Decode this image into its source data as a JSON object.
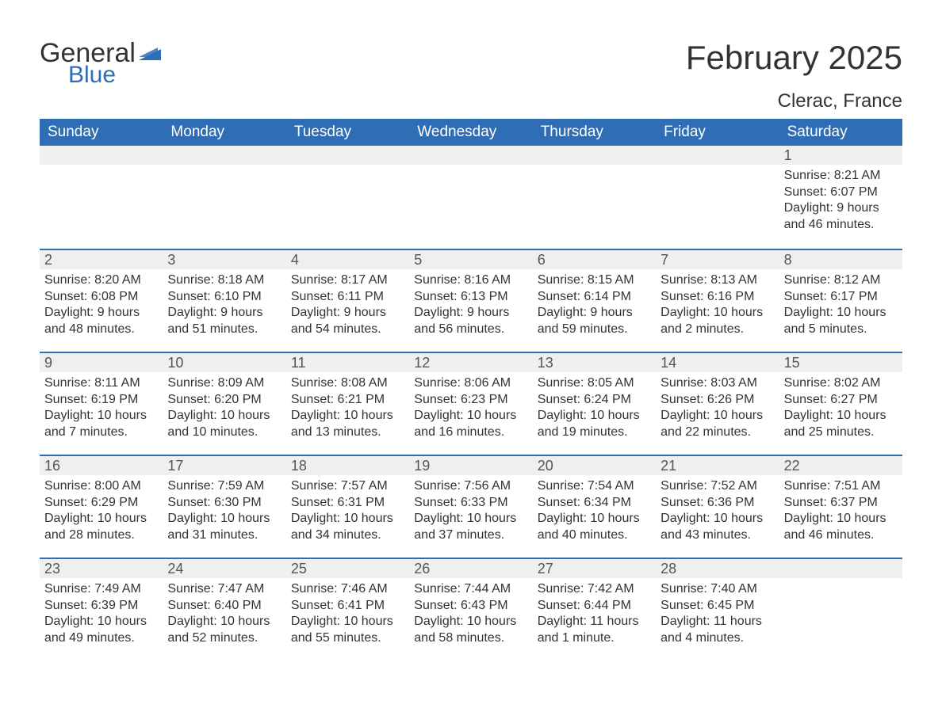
{
  "logo": {
    "word1": "General",
    "word2": "Blue",
    "brand_color": "#2f6eb5"
  },
  "title": "February 2025",
  "location": "Clerac, France",
  "header_bg": "#2f6eb5",
  "header_fg": "#ffffff",
  "row_divider_color": "#2f6eb5",
  "daynum_bg": "#efefef",
  "text_color": "#333333",
  "day_names": [
    "Sunday",
    "Monday",
    "Tuesday",
    "Wednesday",
    "Thursday",
    "Friday",
    "Saturday"
  ],
  "weeks": [
    [
      null,
      null,
      null,
      null,
      null,
      null,
      {
        "n": "1",
        "sunrise": "Sunrise: 8:21 AM",
        "sunset": "Sunset: 6:07 PM",
        "dl1": "Daylight: 9 hours",
        "dl2": "and 46 minutes."
      }
    ],
    [
      {
        "n": "2",
        "sunrise": "Sunrise: 8:20 AM",
        "sunset": "Sunset: 6:08 PM",
        "dl1": "Daylight: 9 hours",
        "dl2": "and 48 minutes."
      },
      {
        "n": "3",
        "sunrise": "Sunrise: 8:18 AM",
        "sunset": "Sunset: 6:10 PM",
        "dl1": "Daylight: 9 hours",
        "dl2": "and 51 minutes."
      },
      {
        "n": "4",
        "sunrise": "Sunrise: 8:17 AM",
        "sunset": "Sunset: 6:11 PM",
        "dl1": "Daylight: 9 hours",
        "dl2": "and 54 minutes."
      },
      {
        "n": "5",
        "sunrise": "Sunrise: 8:16 AM",
        "sunset": "Sunset: 6:13 PM",
        "dl1": "Daylight: 9 hours",
        "dl2": "and 56 minutes."
      },
      {
        "n": "6",
        "sunrise": "Sunrise: 8:15 AM",
        "sunset": "Sunset: 6:14 PM",
        "dl1": "Daylight: 9 hours",
        "dl2": "and 59 minutes."
      },
      {
        "n": "7",
        "sunrise": "Sunrise: 8:13 AM",
        "sunset": "Sunset: 6:16 PM",
        "dl1": "Daylight: 10 hours",
        "dl2": "and 2 minutes."
      },
      {
        "n": "8",
        "sunrise": "Sunrise: 8:12 AM",
        "sunset": "Sunset: 6:17 PM",
        "dl1": "Daylight: 10 hours",
        "dl2": "and 5 minutes."
      }
    ],
    [
      {
        "n": "9",
        "sunrise": "Sunrise: 8:11 AM",
        "sunset": "Sunset: 6:19 PM",
        "dl1": "Daylight: 10 hours",
        "dl2": "and 7 minutes."
      },
      {
        "n": "10",
        "sunrise": "Sunrise: 8:09 AM",
        "sunset": "Sunset: 6:20 PM",
        "dl1": "Daylight: 10 hours",
        "dl2": "and 10 minutes."
      },
      {
        "n": "11",
        "sunrise": "Sunrise: 8:08 AM",
        "sunset": "Sunset: 6:21 PM",
        "dl1": "Daylight: 10 hours",
        "dl2": "and 13 minutes."
      },
      {
        "n": "12",
        "sunrise": "Sunrise: 8:06 AM",
        "sunset": "Sunset: 6:23 PM",
        "dl1": "Daylight: 10 hours",
        "dl2": "and 16 minutes."
      },
      {
        "n": "13",
        "sunrise": "Sunrise: 8:05 AM",
        "sunset": "Sunset: 6:24 PM",
        "dl1": "Daylight: 10 hours",
        "dl2": "and 19 minutes."
      },
      {
        "n": "14",
        "sunrise": "Sunrise: 8:03 AM",
        "sunset": "Sunset: 6:26 PM",
        "dl1": "Daylight: 10 hours",
        "dl2": "and 22 minutes."
      },
      {
        "n": "15",
        "sunrise": "Sunrise: 8:02 AM",
        "sunset": "Sunset: 6:27 PM",
        "dl1": "Daylight: 10 hours",
        "dl2": "and 25 minutes."
      }
    ],
    [
      {
        "n": "16",
        "sunrise": "Sunrise: 8:00 AM",
        "sunset": "Sunset: 6:29 PM",
        "dl1": "Daylight: 10 hours",
        "dl2": "and 28 minutes."
      },
      {
        "n": "17",
        "sunrise": "Sunrise: 7:59 AM",
        "sunset": "Sunset: 6:30 PM",
        "dl1": "Daylight: 10 hours",
        "dl2": "and 31 minutes."
      },
      {
        "n": "18",
        "sunrise": "Sunrise: 7:57 AM",
        "sunset": "Sunset: 6:31 PM",
        "dl1": "Daylight: 10 hours",
        "dl2": "and 34 minutes."
      },
      {
        "n": "19",
        "sunrise": "Sunrise: 7:56 AM",
        "sunset": "Sunset: 6:33 PM",
        "dl1": "Daylight: 10 hours",
        "dl2": "and 37 minutes."
      },
      {
        "n": "20",
        "sunrise": "Sunrise: 7:54 AM",
        "sunset": "Sunset: 6:34 PM",
        "dl1": "Daylight: 10 hours",
        "dl2": "and 40 minutes."
      },
      {
        "n": "21",
        "sunrise": "Sunrise: 7:52 AM",
        "sunset": "Sunset: 6:36 PM",
        "dl1": "Daylight: 10 hours",
        "dl2": "and 43 minutes."
      },
      {
        "n": "22",
        "sunrise": "Sunrise: 7:51 AM",
        "sunset": "Sunset: 6:37 PM",
        "dl1": "Daylight: 10 hours",
        "dl2": "and 46 minutes."
      }
    ],
    [
      {
        "n": "23",
        "sunrise": "Sunrise: 7:49 AM",
        "sunset": "Sunset: 6:39 PM",
        "dl1": "Daylight: 10 hours",
        "dl2": "and 49 minutes."
      },
      {
        "n": "24",
        "sunrise": "Sunrise: 7:47 AM",
        "sunset": "Sunset: 6:40 PM",
        "dl1": "Daylight: 10 hours",
        "dl2": "and 52 minutes."
      },
      {
        "n": "25",
        "sunrise": "Sunrise: 7:46 AM",
        "sunset": "Sunset: 6:41 PM",
        "dl1": "Daylight: 10 hours",
        "dl2": "and 55 minutes."
      },
      {
        "n": "26",
        "sunrise": "Sunrise: 7:44 AM",
        "sunset": "Sunset: 6:43 PM",
        "dl1": "Daylight: 10 hours",
        "dl2": "and 58 minutes."
      },
      {
        "n": "27",
        "sunrise": "Sunrise: 7:42 AM",
        "sunset": "Sunset: 6:44 PM",
        "dl1": "Daylight: 11 hours",
        "dl2": "and 1 minute."
      },
      {
        "n": "28",
        "sunrise": "Sunrise: 7:40 AM",
        "sunset": "Sunset: 6:45 PM",
        "dl1": "Daylight: 11 hours",
        "dl2": "and 4 minutes."
      },
      null
    ]
  ]
}
